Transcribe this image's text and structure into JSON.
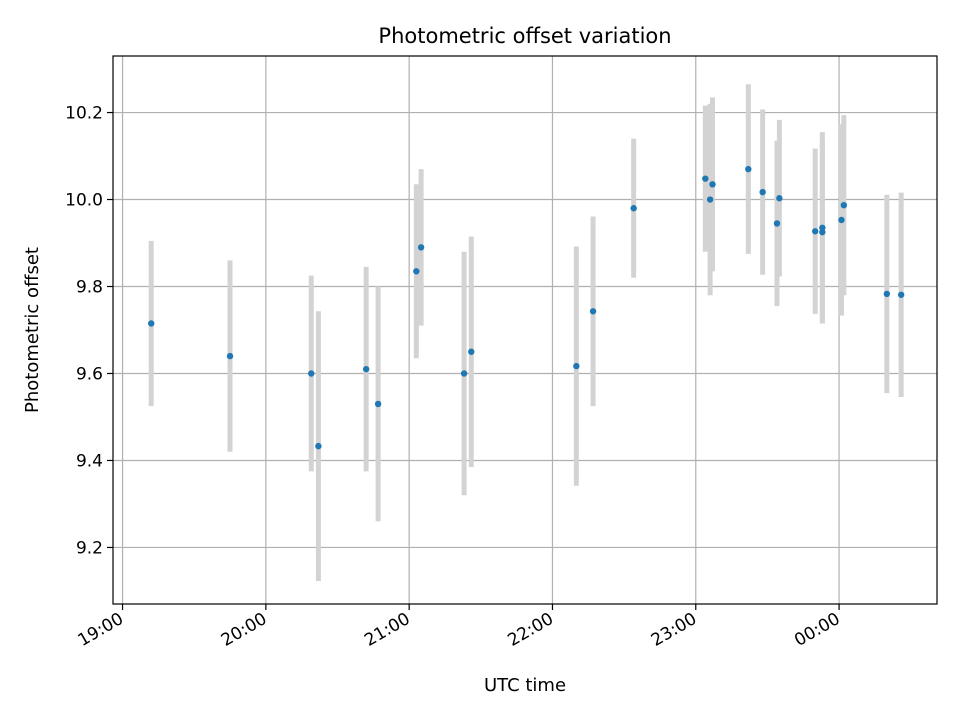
{
  "chart_data": {
    "type": "scatter",
    "title": "Photometric offset variation",
    "xlabel": "UTC time",
    "ylabel": "Photometric offset",
    "x_ticks": [
      "19:00",
      "20:00",
      "21:00",
      "22:00",
      "23:00",
      "00:00"
    ],
    "y_ticks": [
      "9.2",
      "9.4",
      "9.6",
      "9.8",
      "10.0",
      "10.2"
    ],
    "xlim": [
      "18:56",
      "00:41"
    ],
    "ylim": [
      9.07,
      10.33
    ],
    "grid": true,
    "point_color": "#1f77b4",
    "errorbar_color": "#d3d3d3",
    "points": [
      {
        "x": "19:12",
        "y": 9.715,
        "yerr": 0.19
      },
      {
        "x": "19:45",
        "y": 9.64,
        "yerr": 0.22
      },
      {
        "x": "20:19",
        "y": 9.6,
        "yerr": 0.225
      },
      {
        "x": "20:22",
        "y": 9.433,
        "yerr": 0.31
      },
      {
        "x": "20:42",
        "y": 9.61,
        "yerr": 0.235
      },
      {
        "x": "20:47",
        "y": 9.53,
        "yerr": 0.27
      },
      {
        "x": "21:03",
        "y": 9.835,
        "yerr": 0.2
      },
      {
        "x": "21:05",
        "y": 9.89,
        "yerr": 0.18
      },
      {
        "x": "21:23",
        "y": 9.6,
        "yerr": 0.28
      },
      {
        "x": "21:26",
        "y": 9.65,
        "yerr": 0.265
      },
      {
        "x": "22:10",
        "y": 9.617,
        "yerr": 0.275
      },
      {
        "x": "22:17",
        "y": 9.743,
        "yerr": 0.218
      },
      {
        "x": "22:34",
        "y": 9.98,
        "yerr": 0.16
      },
      {
        "x": "23:04",
        "y": 10.048,
        "yerr": 0.168
      },
      {
        "x": "23:06",
        "y": 10.0,
        "yerr": 0.22
      },
      {
        "x": "23:07",
        "y": 10.035,
        "yerr": 0.2
      },
      {
        "x": "23:22",
        "y": 10.07,
        "yerr": 0.195
      },
      {
        "x": "23:28",
        "y": 10.017,
        "yerr": 0.19
      },
      {
        "x": "23:34",
        "y": 9.945,
        "yerr": 0.19
      },
      {
        "x": "23:35",
        "y": 10.003,
        "yerr": 0.18
      },
      {
        "x": "23:50",
        "y": 9.927,
        "yerr": 0.19
      },
      {
        "x": "23:53",
        "y": 9.935,
        "yerr": 0.22
      },
      {
        "x": "23:53",
        "y": 9.925,
        "yerr": 0.21
      },
      {
        "x": "00:01",
        "y": 9.953,
        "yerr": 0.22
      },
      {
        "x": "00:02",
        "y": 9.987,
        "yerr": 0.207
      },
      {
        "x": "00:20",
        "y": 9.783,
        "yerr": 0.228
      },
      {
        "x": "00:26",
        "y": 9.781,
        "yerr": 0.235
      }
    ]
  }
}
